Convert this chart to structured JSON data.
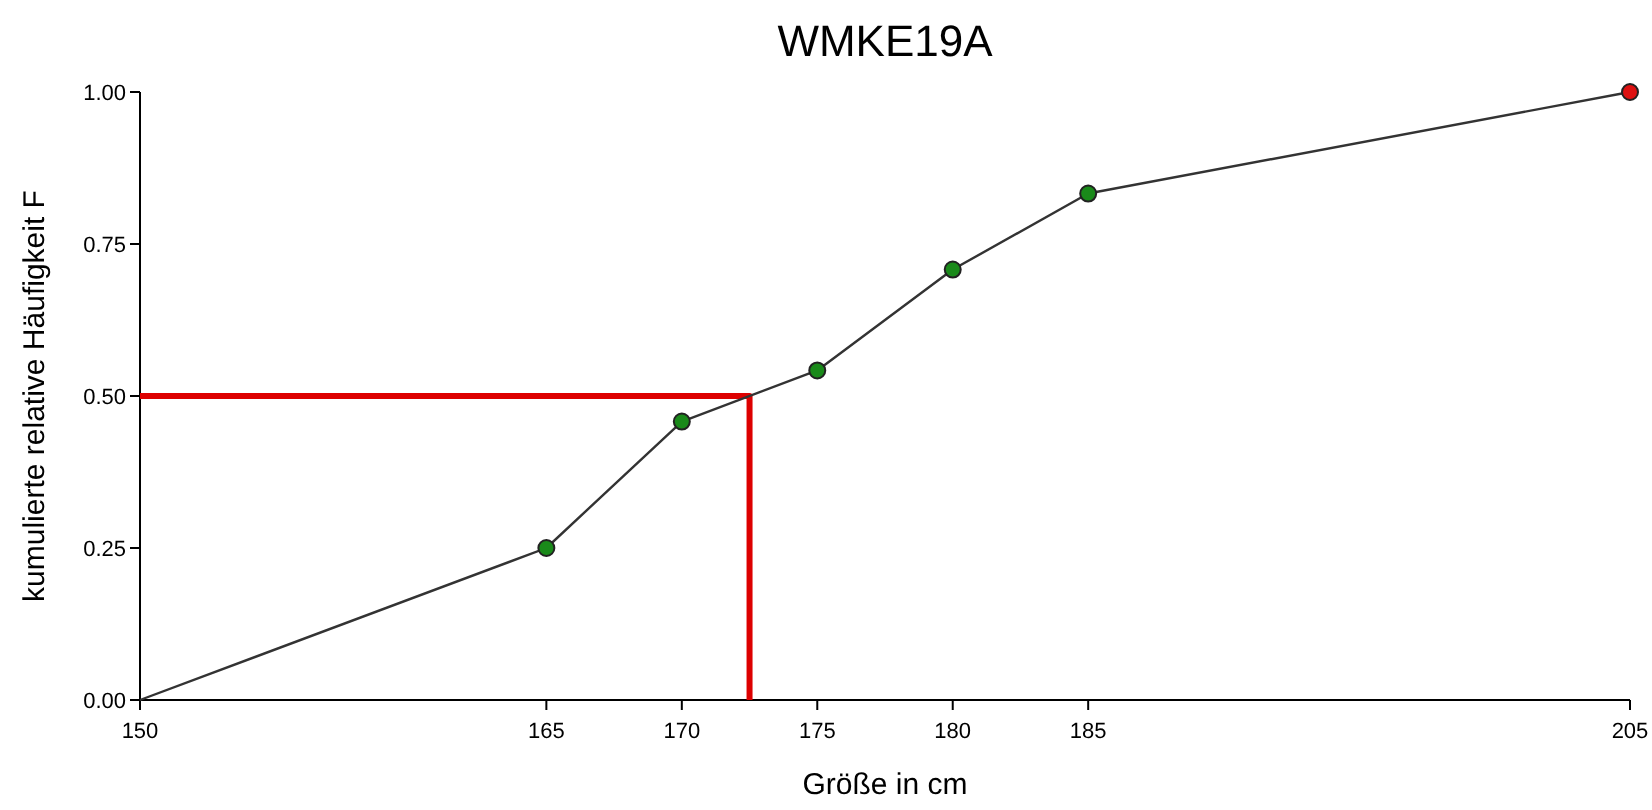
{
  "chart_data": {
    "type": "line",
    "title": "WMKE19A",
    "xlabel": "Größe in cm",
    "ylabel": "kumulierte relative Häufigkeit F",
    "xlim": [
      150,
      205
    ],
    "ylim": [
      0,
      1
    ],
    "xticks": [
      150,
      165,
      170,
      175,
      180,
      185,
      205
    ],
    "yticks": [
      {
        "value": 0,
        "label": "0.00"
      },
      {
        "value": 0.25,
        "label": "0.25"
      },
      {
        "value": 0.5,
        "label": "0.50"
      },
      {
        "value": 0.75,
        "label": "0.75"
      },
      {
        "value": 1,
        "label": "1.00"
      }
    ],
    "grid": false,
    "series": [
      {
        "color": "#333333",
        "marker": "none",
        "x": [
          150,
          165,
          170,
          175,
          180,
          185,
          205
        ],
        "values": [
          0,
          0.25,
          0.458,
          0.542,
          0.708,
          0.833,
          1
        ]
      },
      {
        "type": "scatter",
        "marker": "circle",
        "colors": [
          "#1a8a1a",
          "#1a8a1a",
          "#1a8a1a",
          "#1a8a1a",
          "#1a8a1a",
          "#dd1111"
        ],
        "x": [
          165,
          170,
          175,
          180,
          185,
          205
        ],
        "values": [
          0.25,
          0.458,
          0.542,
          0.708,
          0.833,
          1
        ]
      },
      {
        "color": "#dd0000",
        "marker": "none",
        "x": [
          150,
          172.5,
          172.5
        ],
        "values": [
          0.5,
          0.5,
          0
        ]
      }
    ]
  }
}
